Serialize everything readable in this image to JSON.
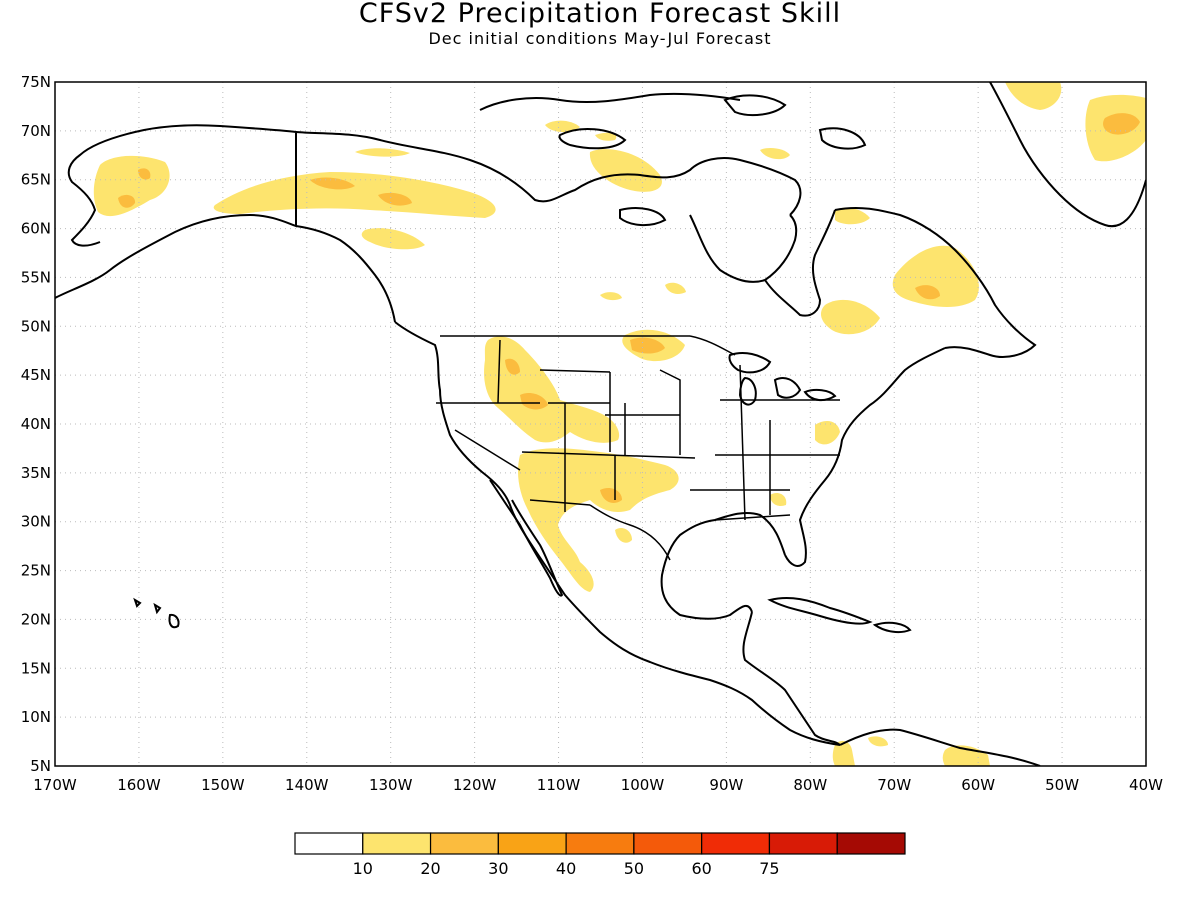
{
  "header": {
    "title": "CFSv2 Precipitation Forecast Skill",
    "subtitle": "Dec initial conditions   May-Jul Forecast"
  },
  "map": {
    "lon_range": [
      -170,
      -40
    ],
    "lat_range": [
      5,
      75
    ],
    "lat_ticks": [
      "5N",
      "10N",
      "15N",
      "20N",
      "25N",
      "30N",
      "35N",
      "40N",
      "45N",
      "50N",
      "55N",
      "60N",
      "65N",
      "70N",
      "75N"
    ],
    "lon_ticks": [
      "170W",
      "160W",
      "150W",
      "140W",
      "130W",
      "120W",
      "110W",
      "100W",
      "90W",
      "80W",
      "70W",
      "60W",
      "50W",
      "40W"
    ],
    "colors": {
      "level_10": "#fde46e",
      "level_20": "#fbbc3e",
      "land_outline": "#000000",
      "grid": "#bbbbbb"
    }
  },
  "legend": {
    "colors": [
      "#ffffff",
      "#fde46e",
      "#fbbc3e",
      "#f9a316",
      "#f77c0f",
      "#f45a0a",
      "#f02c06",
      "#d81b06",
      "#a50a04"
    ],
    "labels": [
      "10",
      "20",
      "30",
      "40",
      "50",
      "60",
      "75"
    ]
  }
}
